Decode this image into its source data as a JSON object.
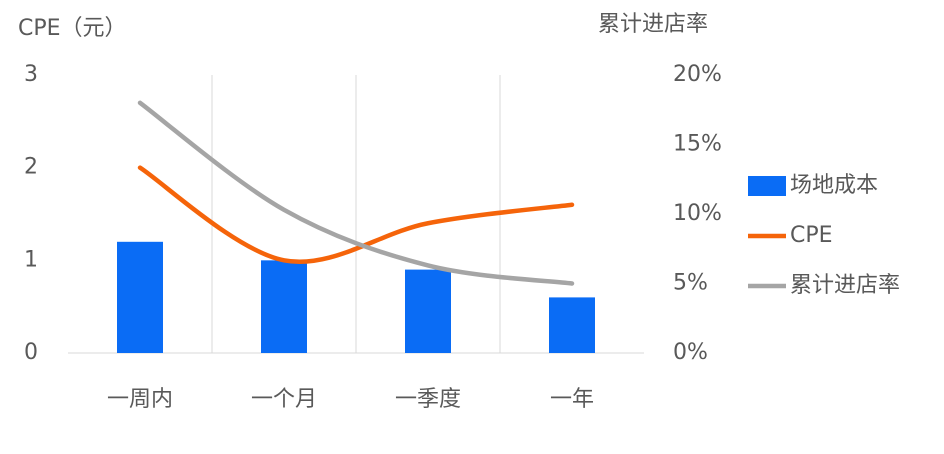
{
  "chart_data": {
    "type": "bar",
    "y_title": "CPE（元）",
    "y2_title": "累计进店率",
    "categories": [
      "一周内",
      "一个月",
      "一季度",
      "一年"
    ],
    "series": [
      {
        "name": "场地成本",
        "type": "bar",
        "color": "#0a6cf5",
        "values": [
          1.2,
          1.0,
          0.9,
          0.6
        ]
      },
      {
        "name": "CPE",
        "type": "line",
        "color": "#f5640a",
        "values": [
          2.0,
          1.0,
          1.4,
          1.6
        ]
      },
      {
        "name": "累计进店率",
        "type": "line",
        "axis": "y2",
        "color": "#a5a5a5",
        "values": [
          18,
          10.3,
          6.3,
          5.0
        ]
      }
    ],
    "ylim": [
      0,
      3
    ],
    "yticks": [
      0,
      1,
      2,
      3
    ],
    "y2lim": [
      0,
      20
    ],
    "y2ticks": [
      {
        "value": 0,
        "label": "0%"
      },
      {
        "value": 5,
        "label": "5%"
      },
      {
        "value": 10,
        "label": "10%"
      },
      {
        "value": 15,
        "label": "15%"
      },
      {
        "value": 20,
        "label": "20%"
      }
    ],
    "grid": true,
    "legend": "right"
  }
}
